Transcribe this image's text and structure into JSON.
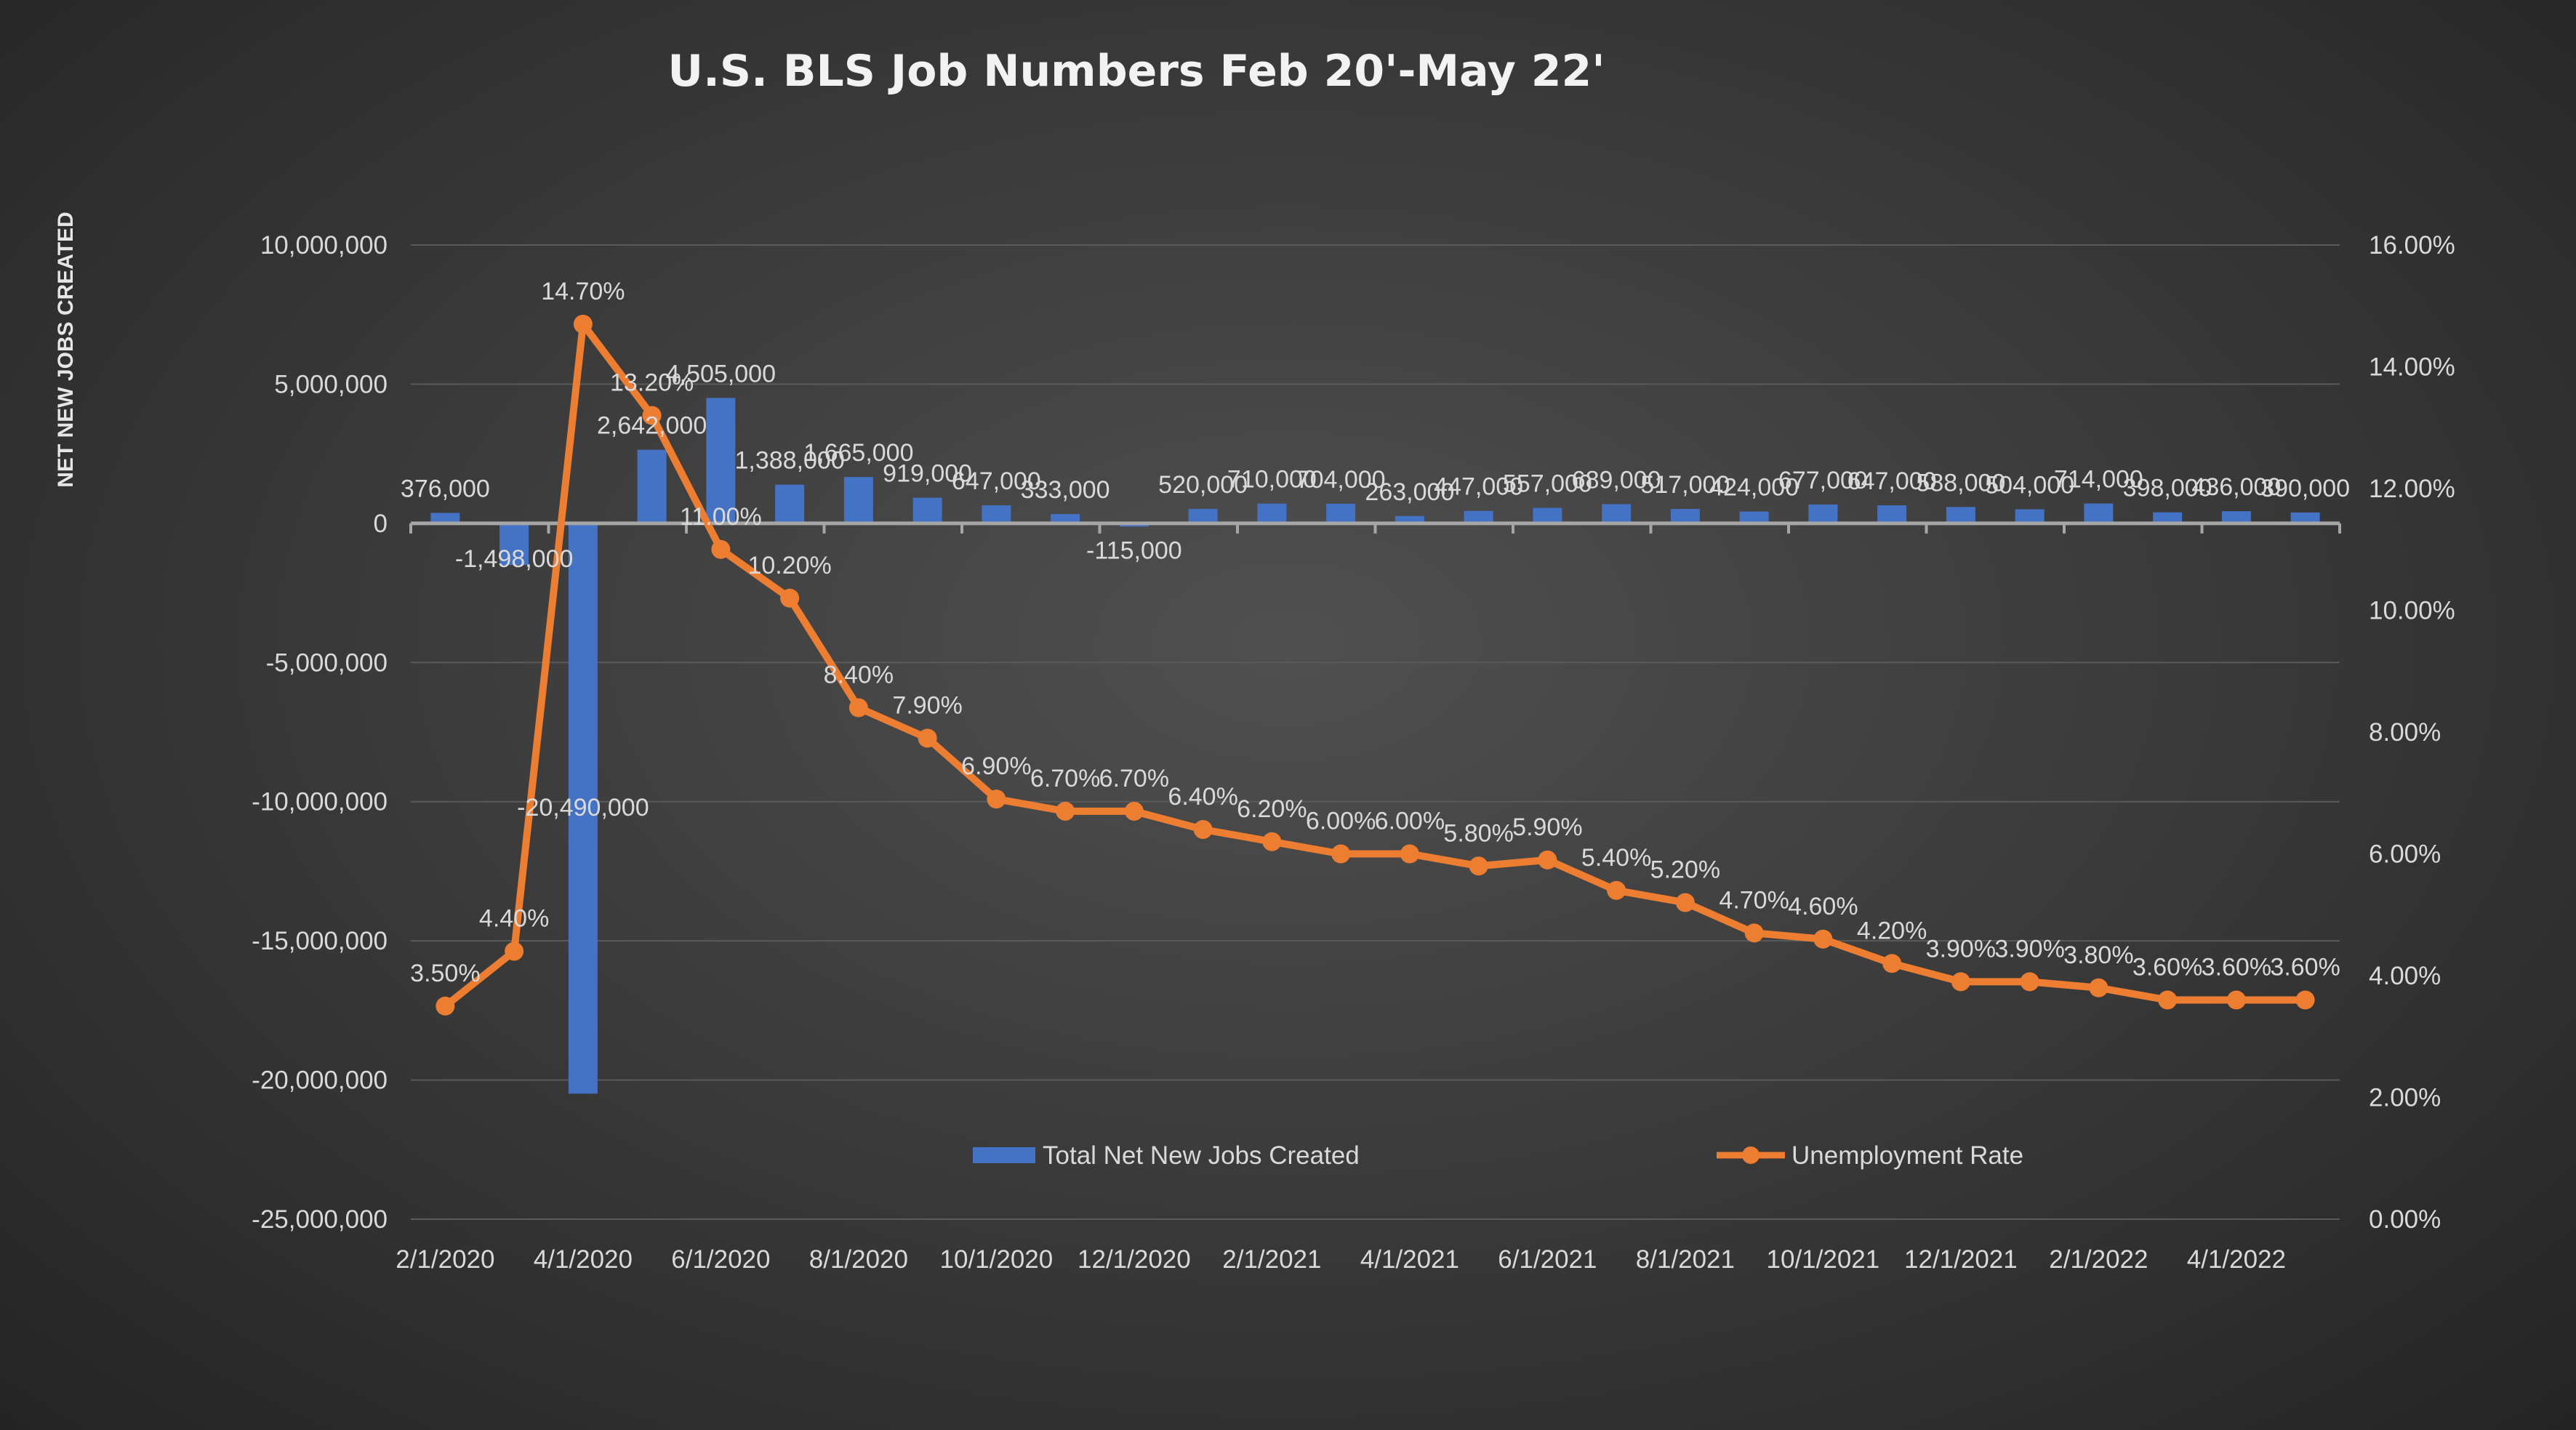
{
  "chart_data": {
    "type": "bar+line",
    "title": "U.S. BLS Job Numbers Feb 20'-May 22'",
    "ylabel": "NET NEW JOBS CREATED",
    "y2label": "",
    "xlabel": "",
    "ylim": [
      -25000000,
      10000000
    ],
    "y2lim": [
      0,
      16
    ],
    "yticks": [
      "10,000,000",
      "5,000,000",
      "0",
      "-5,000,000",
      "-10,000,000",
      "-15,000,000",
      "-20,000,000",
      "-25,000,000"
    ],
    "y2ticks": [
      "16.00%",
      "14.00%",
      "12.00%",
      "10.00%",
      "8.00%",
      "6.00%",
      "4.00%",
      "2.00%",
      "0.00%"
    ],
    "xticks": [
      "2/1/2020",
      "4/1/2020",
      "6/1/2020",
      "8/1/2020",
      "10/1/2020",
      "12/1/2020",
      "2/1/2021",
      "4/1/2021",
      "6/1/2021",
      "8/1/2021",
      "10/1/2021",
      "12/1/2021",
      "2/1/2022",
      "4/1/2022"
    ],
    "categories": [
      "2/1/2020",
      "3/1/2020",
      "4/1/2020",
      "5/1/2020",
      "6/1/2020",
      "7/1/2020",
      "8/1/2020",
      "9/1/2020",
      "10/1/2020",
      "11/1/2020",
      "12/1/2020",
      "1/1/2021",
      "2/1/2021",
      "3/1/2021",
      "4/1/2021",
      "5/1/2021",
      "6/1/2021",
      "7/1/2021",
      "8/1/2021",
      "9/1/2021",
      "10/1/2021",
      "11/1/2021",
      "12/1/2021",
      "1/1/2022",
      "2/1/2022",
      "3/1/2022",
      "4/1/2022",
      "5/1/2022"
    ],
    "grid": true,
    "legend_position": "bottom",
    "series": [
      {
        "name": "Total Net New Jobs Created",
        "type": "bar",
        "axis": "left",
        "color": "#4472c4",
        "values": [
          376000,
          -1498000,
          -20490000,
          2642000,
          4505000,
          1388000,
          1665000,
          919000,
          647000,
          333000,
          -115000,
          520000,
          710000,
          704000,
          263000,
          447000,
          557000,
          689000,
          517000,
          424000,
          677000,
          647000,
          588000,
          504000,
          714000,
          398000,
          436000,
          390000
        ],
        "labels": [
          "376,000",
          "-1,498,000",
          "-20,490,000",
          "2,642,000",
          "4,505,000",
          "1,388,000",
          "1,665,000",
          "919,000",
          "647,000",
          "333,000",
          "-115,000",
          "520,000",
          "710,000",
          "704,000",
          "263,000",
          "447,000",
          "557,000",
          "689,000",
          "517,000",
          "424,000",
          "677,000",
          "647,000",
          "588,000",
          "504,000",
          "714,000",
          "398,000",
          "436,000",
          "390,000"
        ]
      },
      {
        "name": "Unemployment Rate",
        "type": "line",
        "axis": "right",
        "color": "#ed7d31",
        "values": [
          3.5,
          4.4,
          14.7,
          13.2,
          11.0,
          10.2,
          8.4,
          7.9,
          6.9,
          6.7,
          6.7,
          6.4,
          6.2,
          6.0,
          6.0,
          5.8,
          5.9,
          5.4,
          5.2,
          4.7,
          4.6,
          4.2,
          3.9,
          3.9,
          3.8,
          3.6,
          3.6,
          3.6
        ],
        "labels": [
          "3.50%",
          "4.40%",
          "14.70%",
          "13.20%",
          "11.00%",
          "10.20%",
          "8.40%",
          "7.90%",
          "6.90%",
          "6.70%",
          "6.70%",
          "6.40%",
          "6.20%",
          "6.00%",
          "6.00%",
          "5.80%",
          "5.90%",
          "5.40%",
          "5.20%",
          "4.70%",
          "4.60%",
          "4.20%",
          "3.90%",
          "3.90%",
          "3.80%",
          "3.60%",
          "3.60%",
          "3.60%"
        ]
      }
    ]
  }
}
